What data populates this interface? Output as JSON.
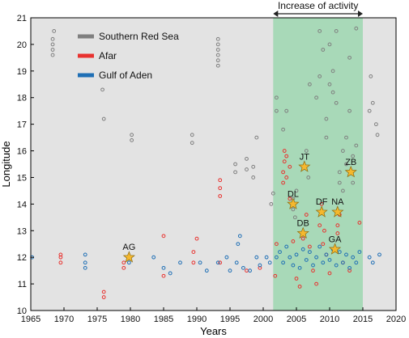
{
  "chart_data": {
    "type": "scatter",
    "xlabel": "Years",
    "ylabel": "Longitude",
    "xlim": [
      1965,
      2020
    ],
    "ylim": [
      10,
      21
    ],
    "xticks": [
      1965,
      1970,
      1975,
      1980,
      1985,
      1990,
      1995,
      2000,
      2005,
      2010,
      2015,
      2020
    ],
    "yticks": [
      10,
      11,
      12,
      13,
      14,
      15,
      16,
      17,
      18,
      19,
      20,
      21
    ],
    "grid": false,
    "background": "#e3e3e3",
    "legend_position": "top-left",
    "highlight": {
      "label": "Increase of activity",
      "x": [
        2001.5,
        2015
      ],
      "color": "#a8d9b8"
    },
    "series": [
      {
        "name": "Southern Red Sea",
        "color": "#7f7f7f",
        "points": [
          [
            1968.3,
            19.6
          ],
          [
            1968.3,
            19.8
          ],
          [
            1968.3,
            20.0
          ],
          [
            1968.3,
            20.2
          ],
          [
            1968.5,
            20.5
          ],
          [
            1975.8,
            18.3
          ],
          [
            1976.0,
            17.2
          ],
          [
            1980.2,
            16.4
          ],
          [
            1980.2,
            16.6
          ],
          [
            1989.3,
            16.3
          ],
          [
            1989.3,
            16.6
          ],
          [
            1993.2,
            19.2
          ],
          [
            1993.2,
            19.4
          ],
          [
            1993.2,
            19.6
          ],
          [
            1993.2,
            19.8
          ],
          [
            1993.2,
            20.0
          ],
          [
            1993.2,
            20.2
          ],
          [
            1995.8,
            15.2
          ],
          [
            1995.8,
            15.5
          ],
          [
            1997.5,
            15.3
          ],
          [
            1997.5,
            15.7
          ],
          [
            1998.5,
            15.0
          ],
          [
            1998.5,
            15.4
          ],
          [
            1999.0,
            16.5
          ],
          [
            2001.2,
            14.0
          ],
          [
            2001.5,
            14.4
          ],
          [
            2002.0,
            17.5
          ],
          [
            2002.0,
            18.0
          ],
          [
            2003.0,
            16.8
          ],
          [
            2003.5,
            17.5
          ],
          [
            2004.5,
            13.8
          ],
          [
            2004.5,
            14.2
          ],
          [
            2004.8,
            13.5
          ],
          [
            2005.0,
            14.5
          ],
          [
            2006.5,
            16.0
          ],
          [
            2006.8,
            15.0
          ],
          [
            2007.0,
            18.5
          ],
          [
            2008.0,
            18.0
          ],
          [
            2008.5,
            18.8
          ],
          [
            2008.5,
            20.5
          ],
          [
            2009.0,
            19.8
          ],
          [
            2009.5,
            17.2
          ],
          [
            2009.5,
            16.5
          ],
          [
            2010.0,
            18.5
          ],
          [
            2010.0,
            20.0
          ],
          [
            2010.5,
            19.0
          ],
          [
            2010.5,
            18.2
          ],
          [
            2011.0,
            20.5
          ],
          [
            2011.0,
            17.8
          ],
          [
            2011.5,
            14.8
          ],
          [
            2011.5,
            15.2
          ],
          [
            2012.0,
            16.0
          ],
          [
            2012.0,
            14.5
          ],
          [
            2012.5,
            15.5
          ],
          [
            2012.5,
            16.5
          ],
          [
            2013.0,
            17.5
          ],
          [
            2013.0,
            19.5
          ],
          [
            2013.5,
            15.8
          ],
          [
            2013.5,
            14.8
          ],
          [
            2014.0,
            16.2
          ],
          [
            2014.0,
            20.6
          ],
          [
            2016.0,
            17.5
          ],
          [
            2016.2,
            18.8
          ],
          [
            2016.5,
            17.8
          ],
          [
            2017.0,
            17.0
          ],
          [
            2017.2,
            16.6
          ]
        ]
      },
      {
        "name": "Afar",
        "color": "#e8322f",
        "points": [
          [
            1969.5,
            11.8
          ],
          [
            1969.5,
            12.0
          ],
          [
            1969.5,
            12.1
          ],
          [
            1976.0,
            10.7
          ],
          [
            1976.0,
            10.5
          ],
          [
            1979.0,
            11.6
          ],
          [
            1979.0,
            11.8
          ],
          [
            1985.0,
            12.8
          ],
          [
            1985.0,
            11.3
          ],
          [
            1989.5,
            11.8
          ],
          [
            1989.5,
            12.2
          ],
          [
            1990.0,
            12.7
          ],
          [
            1993.5,
            14.3
          ],
          [
            1993.5,
            14.6
          ],
          [
            1993.5,
            14.9
          ],
          [
            1993.5,
            11.8
          ],
          [
            1997.5,
            11.5
          ],
          [
            1999.5,
            11.6
          ],
          [
            2001.8,
            11.3
          ],
          [
            2002.0,
            12.5
          ],
          [
            2003.0,
            14.8
          ],
          [
            2003.0,
            15.2
          ],
          [
            2003.2,
            15.6
          ],
          [
            2003.2,
            16.0
          ],
          [
            2003.5,
            15.0
          ],
          [
            2003.5,
            15.8
          ],
          [
            2004.0,
            14.2
          ],
          [
            2004.0,
            15.4
          ],
          [
            2004.5,
            12.6
          ],
          [
            2005.0,
            11.2
          ],
          [
            2005.5,
            10.9
          ],
          [
            2006.0,
            12.7
          ],
          [
            2006.5,
            13.6
          ],
          [
            2007.0,
            12.4
          ],
          [
            2007.5,
            11.5
          ],
          [
            2008.0,
            11.0
          ],
          [
            2008.5,
            13.2
          ],
          [
            2008.8,
            14.0
          ],
          [
            2009.0,
            12.5
          ],
          [
            2009.2,
            13.0
          ],
          [
            2009.5,
            12.1
          ],
          [
            2010.0,
            11.4
          ],
          [
            2011.2,
            12.9
          ],
          [
            2011.2,
            13.2
          ],
          [
            2011.5,
            13.6
          ],
          [
            2012.0,
            11.8
          ],
          [
            2013.0,
            11.5
          ],
          [
            2014.5,
            13.3
          ]
        ]
      },
      {
        "name": "Gulf of Aden",
        "color": "#1f6fb5",
        "points": [
          [
            1965.2,
            12.0
          ],
          [
            1973.2,
            11.6
          ],
          [
            1973.2,
            11.8
          ],
          [
            1973.2,
            12.1
          ],
          [
            1979.8,
            11.8
          ],
          [
            1983.5,
            12.0
          ],
          [
            1985.0,
            11.6
          ],
          [
            1986.0,
            11.4
          ],
          [
            1987.5,
            11.8
          ],
          [
            1990.5,
            11.8
          ],
          [
            1991.5,
            11.5
          ],
          [
            1993.2,
            11.8
          ],
          [
            1994.5,
            12.0
          ],
          [
            1995.0,
            11.5
          ],
          [
            1996.0,
            11.8
          ],
          [
            1996.2,
            12.5
          ],
          [
            1996.5,
            12.8
          ],
          [
            1997.0,
            11.6
          ],
          [
            1998.0,
            11.5
          ],
          [
            1999.0,
            12.0
          ],
          [
            1999.5,
            11.7
          ],
          [
            2000.5,
            12.0
          ],
          [
            2001.0,
            11.8
          ],
          [
            2002.0,
            12.0
          ],
          [
            2002.5,
            12.2
          ],
          [
            2003.0,
            11.8
          ],
          [
            2003.5,
            12.4
          ],
          [
            2004.0,
            12.0
          ],
          [
            2004.5,
            11.7
          ],
          [
            2005.0,
            12.1
          ],
          [
            2005.5,
            11.6
          ],
          [
            2006.0,
            12.3
          ],
          [
            2006.5,
            11.9
          ],
          [
            2007.0,
            12.2
          ],
          [
            2007.5,
            11.7
          ],
          [
            2008.0,
            12.0
          ],
          [
            2008.5,
            12.4
          ],
          [
            2009.0,
            11.8
          ],
          [
            2009.5,
            12.1
          ],
          [
            2010.0,
            11.9
          ],
          [
            2010.5,
            12.3
          ],
          [
            2011.0,
            11.7
          ],
          [
            2011.5,
            12.2
          ],
          [
            2012.0,
            11.8
          ],
          [
            2012.5,
            12.1
          ],
          [
            2013.0,
            11.6
          ],
          [
            2013.5,
            12.0
          ],
          [
            2014.0,
            11.8
          ],
          [
            2014.5,
            12.2
          ],
          [
            2016.0,
            12.0
          ],
          [
            2016.5,
            11.8
          ],
          [
            2017.5,
            12.1
          ]
        ]
      }
    ],
    "annotations": [
      {
        "label": "AG",
        "x": 1979.8,
        "y": 12.0
      },
      {
        "label": "JT",
        "x": 2006.2,
        "y": 15.4
      },
      {
        "label": "DL",
        "x": 2004.5,
        "y": 14.0
      },
      {
        "label": "DF",
        "x": 2008.8,
        "y": 13.7
      },
      {
        "label": "DB",
        "x": 2006.0,
        "y": 12.9
      },
      {
        "label": "ZB",
        "x": 2013.2,
        "y": 15.2
      },
      {
        "label": "NA",
        "x": 2011.2,
        "y": 13.7
      },
      {
        "label": "GA",
        "x": 2010.8,
        "y": 12.3
      }
    ]
  }
}
